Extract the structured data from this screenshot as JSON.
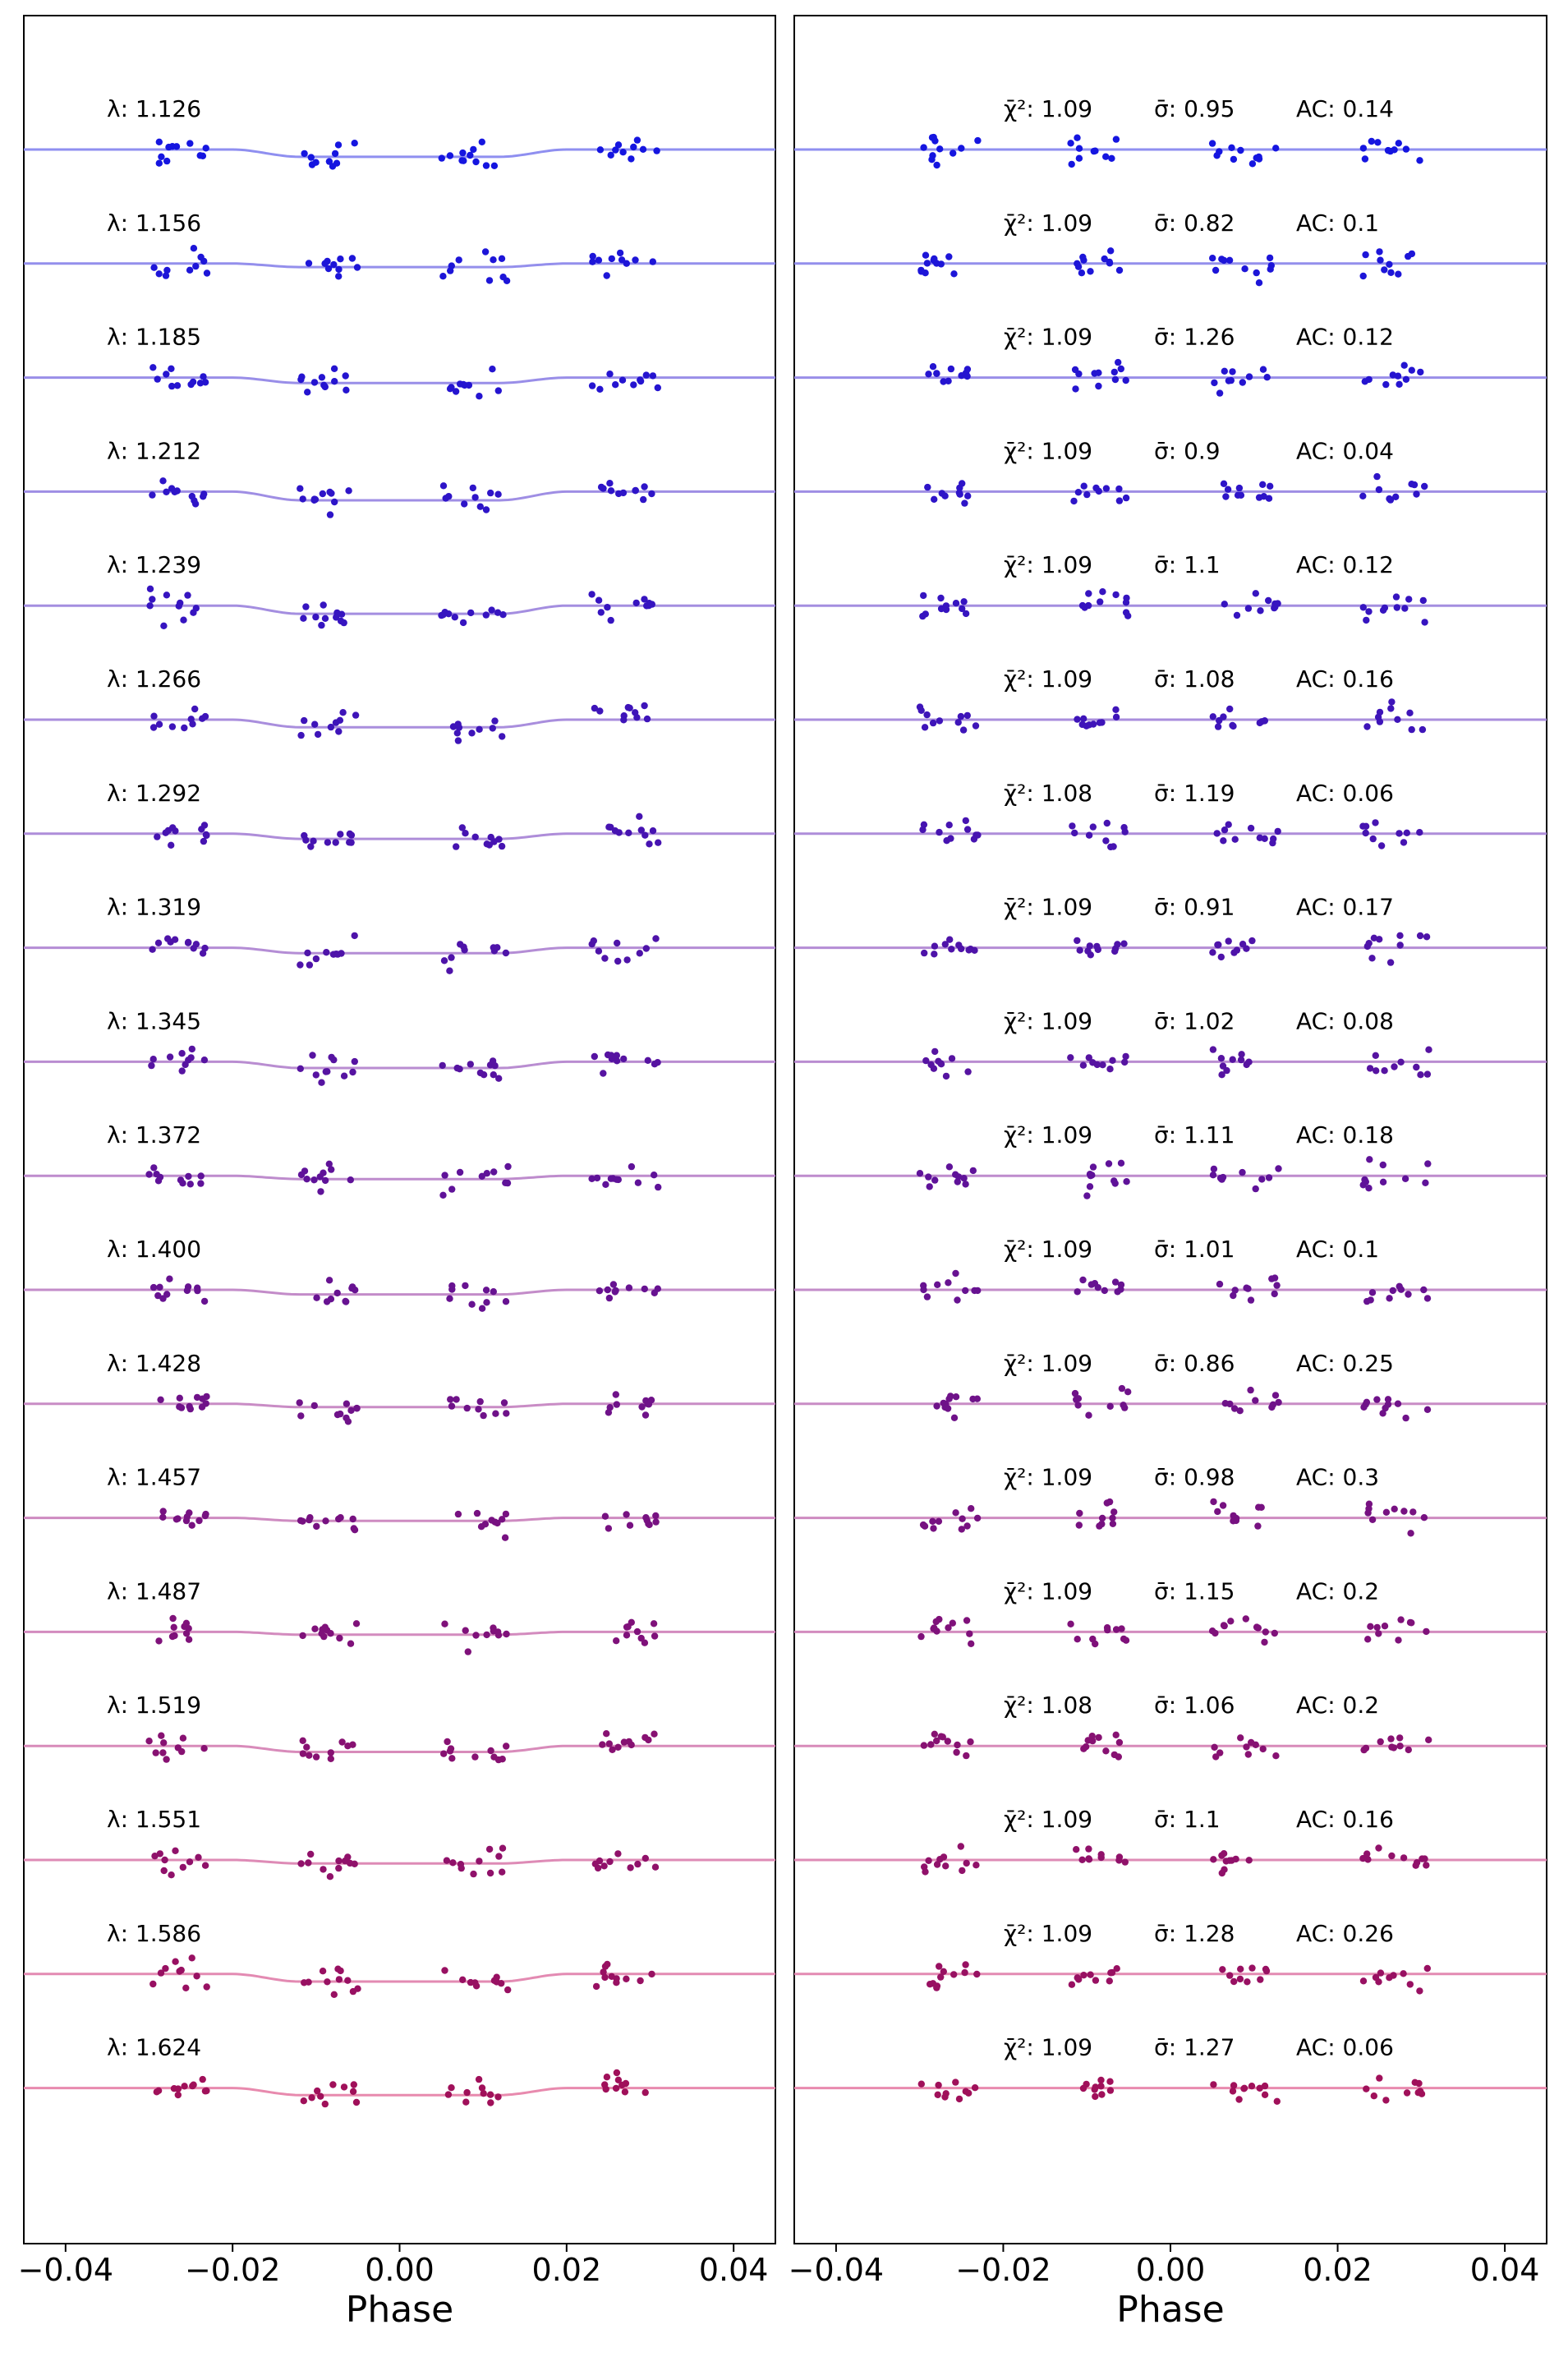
{
  "chart_data": [
    {
      "type": "line",
      "panel": "left",
      "xlabel": "Phase",
      "ylabel": "",
      "xlim": [
        -0.045,
        0.045
      ],
      "xticks": [
        -0.04,
        -0.02,
        0.0,
        0.02,
        0.04
      ],
      "xtick_labels": [
        "−0.04",
        "−0.02",
        "0.00",
        "0.02",
        "0.04"
      ],
      "grid": false,
      "row_labels": [
        "λ: 1.126",
        "λ: 1.156",
        "λ: 1.185",
        "λ: 1.212",
        "λ: 1.239",
        "λ: 1.266",
        "λ: 1.292",
        "λ: 1.319",
        "λ: 1.345",
        "λ: 1.372",
        "λ: 1.400",
        "λ: 1.428",
        "λ: 1.457",
        "λ: 1.487",
        "λ: 1.519",
        "λ: 1.551",
        "λ: 1.586",
        "λ: 1.624"
      ],
      "transit_depth_rel": [
        0.27,
        0.13,
        0.2,
        0.32,
        0.3,
        0.28,
        0.19,
        0.2,
        0.23,
        0.12,
        0.17,
        0.12,
        0.11,
        0.1,
        0.22,
        0.13,
        0.28,
        0.26
      ]
    },
    {
      "type": "line",
      "panel": "right",
      "xlabel": "Phase",
      "ylabel": "",
      "xlim": [
        -0.045,
        0.045
      ],
      "xticks": [
        -0.04,
        -0.02,
        0.0,
        0.02,
        0.04
      ],
      "xtick_labels": [
        "−0.04",
        "−0.02",
        "0.00",
        "0.02",
        "0.04"
      ],
      "grid": false,
      "chi2_labels": [
        "1.09",
        "1.09",
        "1.09",
        "1.09",
        "1.09",
        "1.09",
        "1.08",
        "1.09",
        "1.09",
        "1.09",
        "1.09",
        "1.09",
        "1.09",
        "1.09",
        "1.08",
        "1.09",
        "1.09",
        "1.09"
      ],
      "sigma_labels": [
        "0.95",
        "0.82",
        "1.26",
        "0.9",
        "1.1",
        "1.08",
        "1.19",
        "0.91",
        "1.02",
        "1.11",
        "1.01",
        "0.86",
        "0.98",
        "1.15",
        "1.06",
        "1.1",
        "1.28",
        "1.27"
      ],
      "ac_labels": [
        "0.14",
        "0.1",
        "0.12",
        "0.04",
        "0.12",
        "0.16",
        "0.06",
        "0.17",
        "0.08",
        "0.18",
        "0.1",
        "0.25",
        "0.3",
        "0.2",
        "0.2",
        "0.16",
        "0.26",
        "0.06"
      ]
    }
  ],
  "label_prefix": {
    "chi2": "χ̄²: ",
    "sigma": "σ̄: ",
    "ac": "AC: "
  },
  "colors": {
    "model_line_start": "#8f8ff0",
    "model_line_end": "#e88aae",
    "points_start": "#1515e0",
    "points_end": "#a0105a"
  }
}
